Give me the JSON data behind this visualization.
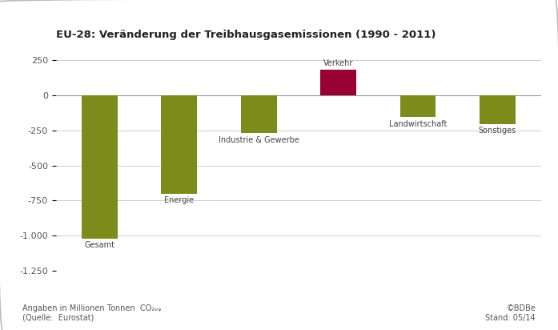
{
  "title": "EU-28: Veränderung der Treibhausgasemissionen (1990 - 2011)",
  "categories": [
    "Gesamt",
    "Energie",
    "Industrie & Gewerbe",
    "Verkehr",
    "Landwirtschaft",
    "Sonstiges"
  ],
  "values": [
    -1020,
    -700,
    -270,
    185,
    -155,
    -205
  ],
  "bar_colors": [
    "#7b8c1a",
    "#7b8c1a",
    "#7b8c1a",
    "#990033",
    "#7b8c1a",
    "#7b8c1a"
  ],
  "ylim": [
    -1250,
    350
  ],
  "yticks": [
    -1250,
    -1000,
    -750,
    -500,
    -250,
    0,
    250
  ],
  "ytick_labels": [
    "-1.250",
    "-1.000",
    "-750",
    "-500",
    "-250",
    "0",
    "250"
  ],
  "footnote_left": "Angaben in Millionen Tonnen  CO₂ₑᵩ\n(Quelle:  Eurostat)",
  "footnote_right": "©BDBe\nStand: 05/14",
  "background_color": "#ffffff",
  "bar_label_fontsize": 7.0,
  "title_fontsize": 9.5,
  "footnote_fontsize": 7.0,
  "ytick_fontsize": 8.0,
  "bar_width": 0.45
}
